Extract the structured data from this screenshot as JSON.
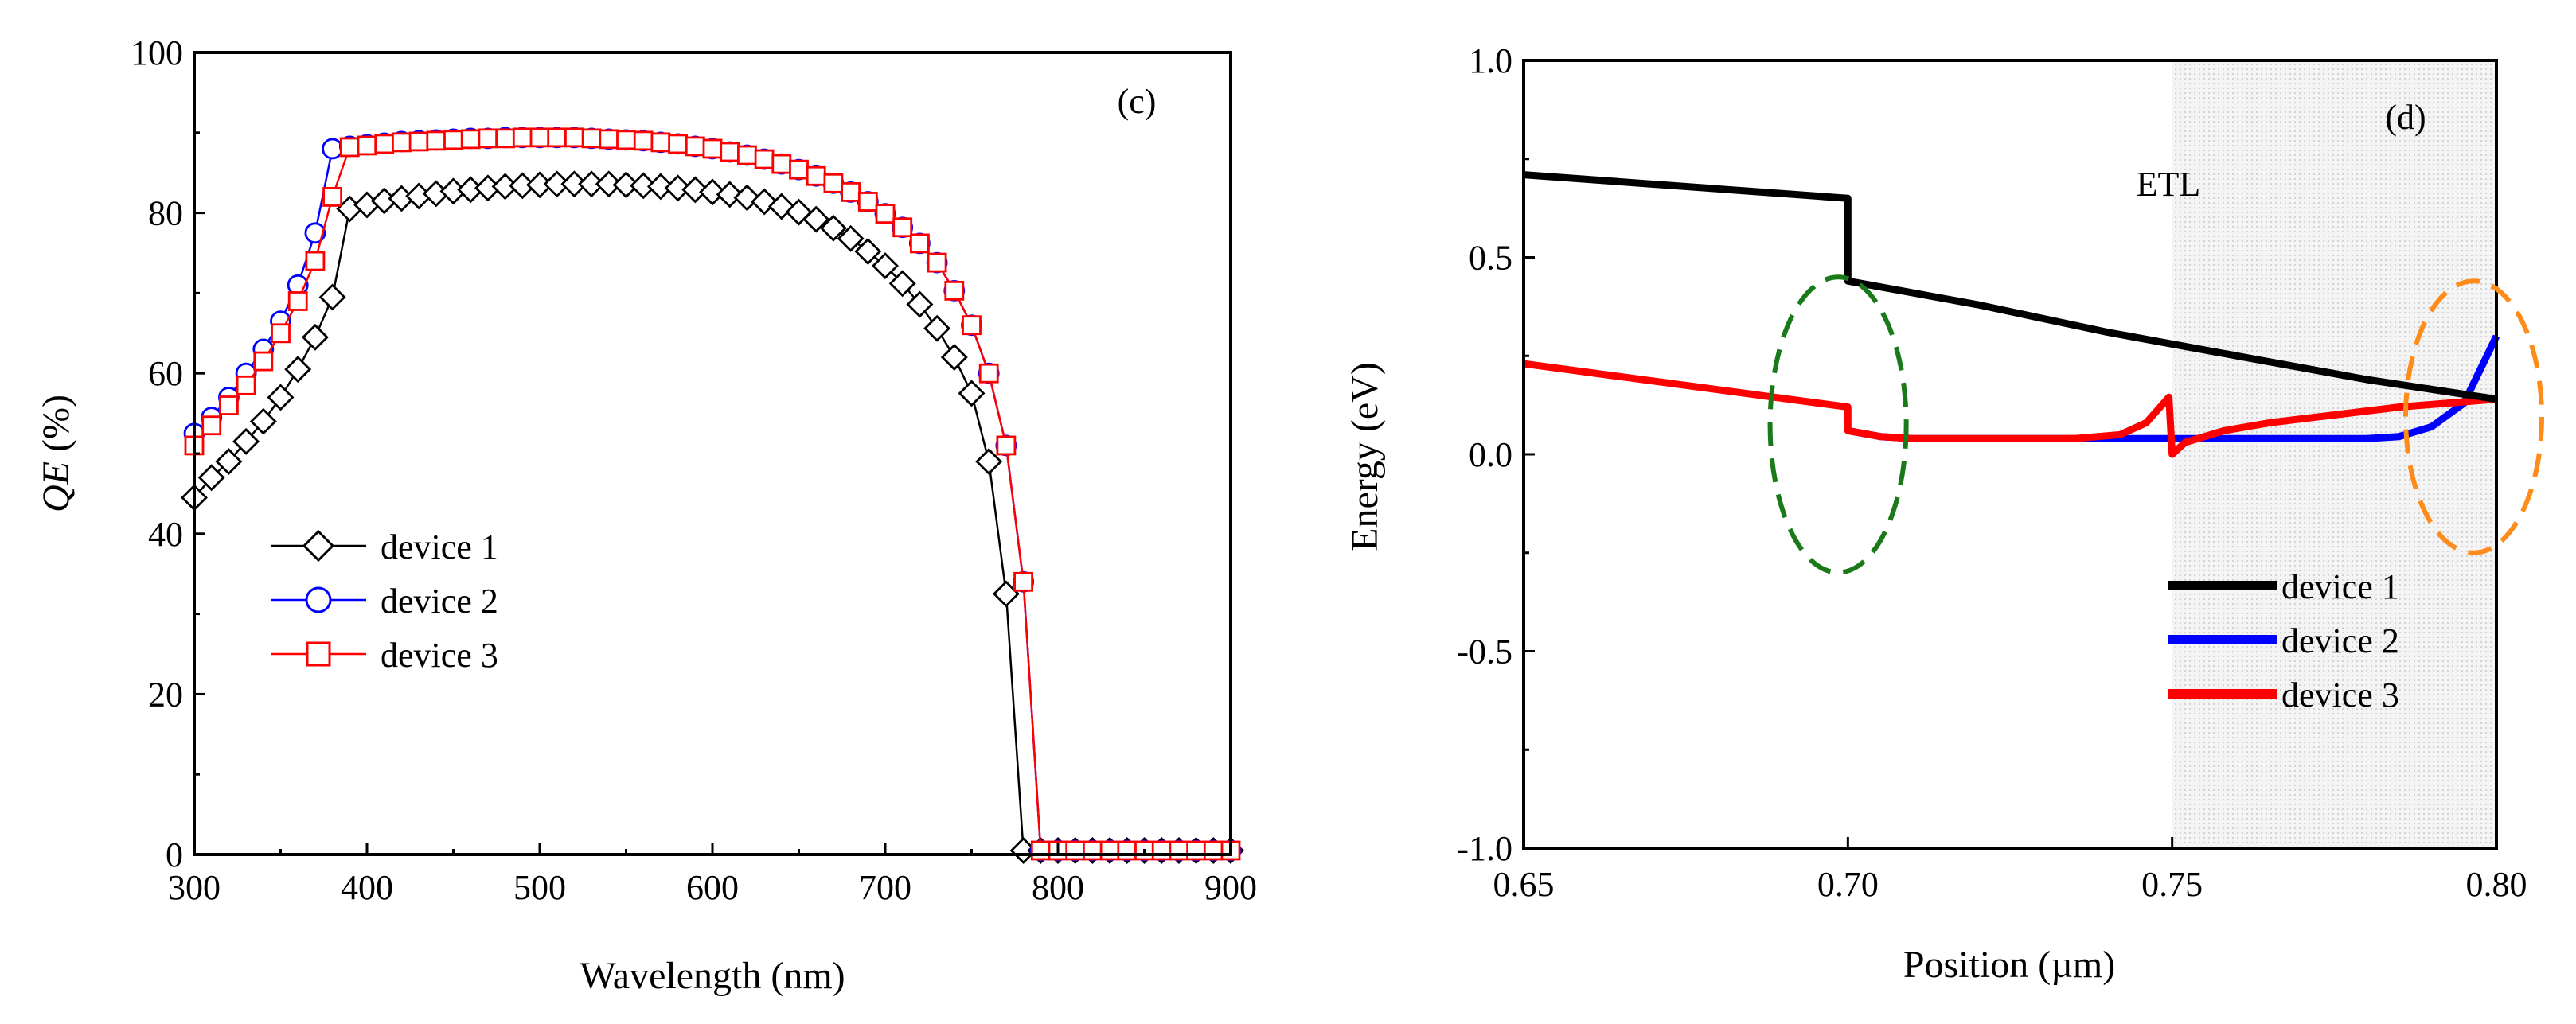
{
  "chart_data": [
    {
      "type": "line",
      "panel_label": "(c)",
      "xlabel": "Wavelength (nm)",
      "ylabel_main": "QE",
      "ylabel_suffix": " (%)",
      "xlim": [
        300,
        900
      ],
      "ylim": [
        0,
        100
      ],
      "xticks": [
        300,
        400,
        500,
        600,
        700,
        800,
        900
      ],
      "yticks": [
        0,
        20,
        40,
        60,
        80,
        100
      ],
      "legend_position": "left-center",
      "series": [
        {
          "name": "device 1",
          "color": "#000000",
          "marker": "diamond",
          "x": [
            300,
            310,
            320,
            330,
            340,
            350,
            360,
            370,
            380,
            390,
            400,
            410,
            420,
            430,
            440,
            450,
            460,
            470,
            480,
            490,
            500,
            510,
            520,
            530,
            540,
            550,
            560,
            570,
            580,
            590,
            600,
            610,
            620,
            630,
            640,
            650,
            660,
            670,
            680,
            690,
            700,
            710,
            720,
            730,
            740,
            750,
            760,
            770,
            780,
            790,
            800,
            810,
            820,
            830,
            840,
            850,
            860,
            870,
            880,
            890,
            900
          ],
          "y": [
            44.5,
            47,
            49,
            51.5,
            54,
            57,
            60.5,
            64.5,
            69.5,
            80.5,
            81,
            81.5,
            81.8,
            82.1,
            82.4,
            82.7,
            82.9,
            83.1,
            83.3,
            83.4,
            83.5,
            83.6,
            83.6,
            83.6,
            83.6,
            83.5,
            83.4,
            83.3,
            83.1,
            82.9,
            82.6,
            82.3,
            81.9,
            81.4,
            80.8,
            80.1,
            79.2,
            78.1,
            76.8,
            75.2,
            73.4,
            71.2,
            68.6,
            65.6,
            62,
            57.5,
            49,
            32.5,
            0.5,
            0.5,
            0.5,
            0.5,
            0.5,
            0.5,
            0.5,
            0.5,
            0.5,
            0.5,
            0.5,
            0.5,
            0.5
          ]
        },
        {
          "name": "device 2",
          "color": "#0000ff",
          "marker": "circle",
          "x": [
            300,
            310,
            320,
            330,
            340,
            350,
            360,
            370,
            380,
            390,
            400,
            410,
            420,
            430,
            440,
            450,
            460,
            470,
            480,
            490,
            500,
            510,
            520,
            530,
            540,
            550,
            560,
            570,
            580,
            590,
            600,
            610,
            620,
            630,
            640,
            650,
            660,
            670,
            680,
            690,
            700,
            710,
            720,
            730,
            740,
            750,
            760,
            770,
            780,
            790,
            800,
            810,
            820,
            830,
            840,
            850,
            860,
            870,
            880,
            890,
            900
          ],
          "y": [
            52.5,
            54.5,
            57,
            60,
            63,
            66.5,
            71,
            77.5,
            88,
            88.3,
            88.5,
            88.7,
            88.9,
            89,
            89.1,
            89.2,
            89.3,
            89.3,
            89.4,
            89.4,
            89.4,
            89.4,
            89.4,
            89.3,
            89.2,
            89.1,
            89,
            88.8,
            88.6,
            88.3,
            88,
            87.6,
            87.2,
            86.7,
            86.1,
            85.4,
            84.6,
            83.7,
            82.6,
            81.4,
            79.9,
            78.2,
            76.2,
            73.8,
            70.3,
            66,
            60,
            51,
            34,
            0.5,
            0.5,
            0.5,
            0.5,
            0.5,
            0.5,
            0.5,
            0.5,
            0.5,
            0.5,
            0.5,
            0.5
          ]
        },
        {
          "name": "device 3",
          "color": "#ff0000",
          "marker": "square",
          "x": [
            300,
            310,
            320,
            330,
            340,
            350,
            360,
            370,
            380,
            390,
            400,
            410,
            420,
            430,
            440,
            450,
            460,
            470,
            480,
            490,
            500,
            510,
            520,
            530,
            540,
            550,
            560,
            570,
            580,
            590,
            600,
            610,
            620,
            630,
            640,
            650,
            660,
            670,
            680,
            690,
            700,
            710,
            720,
            730,
            740,
            750,
            760,
            770,
            780,
            790,
            800,
            810,
            820,
            830,
            840,
            850,
            860,
            870,
            880,
            890,
            900
          ],
          "y": [
            51,
            53.5,
            56,
            58.5,
            61.5,
            65,
            69,
            74,
            82,
            88.2,
            88.4,
            88.6,
            88.8,
            88.9,
            89,
            89.1,
            89.2,
            89.3,
            89.3,
            89.4,
            89.4,
            89.4,
            89.4,
            89.3,
            89.2,
            89.1,
            89,
            88.8,
            88.6,
            88.3,
            88,
            87.6,
            87.2,
            86.7,
            86.1,
            85.4,
            84.6,
            83.7,
            82.6,
            81.4,
            79.9,
            78.2,
            76.2,
            73.8,
            70.3,
            66,
            60,
            51,
            34,
            0.5,
            0.5,
            0.5,
            0.5,
            0.5,
            0.5,
            0.5,
            0.5,
            0.5,
            0.5,
            0.5,
            0.5
          ]
        }
      ]
    },
    {
      "type": "line",
      "panel_label": "(d)",
      "xlabel": "Position (µm)",
      "ylabel": "Energy (eV)",
      "region_label": "ETL",
      "region_x": [
        0.75,
        0.8
      ],
      "xlim": [
        0.65,
        0.8
      ],
      "ylim": [
        -1.0,
        1.0
      ],
      "xticks": [
        "0.65",
        "0.70",
        "0.75",
        "0.80"
      ],
      "yticks": [
        "-1.0",
        "-0.5",
        "0.0",
        "0.5",
        "1.0"
      ],
      "legend_position": "lower-right",
      "annotations": [
        {
          "shape": "dashed-ellipse",
          "color": "#1a7a1a",
          "center": [
            0.6985,
            0.075
          ],
          "radius_x": 0.0105,
          "radius_y": 0.375
        },
        {
          "shape": "dashed-ellipse",
          "color": "#ff8c1a",
          "center": [
            0.7965,
            0.095
          ],
          "radius_x": 0.0105,
          "radius_y": 0.345
        }
      ],
      "series": [
        {
          "name": "device 1",
          "color": "#000000",
          "x": [
            0.65,
            0.7,
            0.7,
            0.72,
            0.74,
            0.76,
            0.78,
            0.8
          ],
          "y": [
            0.71,
            0.65,
            0.44,
            0.38,
            0.31,
            0.25,
            0.19,
            0.14
          ]
        },
        {
          "name": "device 2",
          "color": "#0000ff",
          "x": [
            0.7,
            0.705,
            0.71,
            0.73,
            0.75,
            0.77,
            0.78,
            0.785,
            0.79,
            0.795,
            0.8
          ],
          "y": [
            0.06,
            0.045,
            0.04,
            0.04,
            0.04,
            0.04,
            0.04,
            0.045,
            0.07,
            0.13,
            0.3
          ]
        },
        {
          "name": "device 3",
          "color": "#ff0000",
          "x": [
            0.65,
            0.7,
            0.7,
            0.705,
            0.71,
            0.735,
            0.742,
            0.746,
            0.7495,
            0.75,
            0.752,
            0.758,
            0.765,
            0.775,
            0.785,
            0.8
          ],
          "y": [
            0.23,
            0.12,
            0.06,
            0.045,
            0.04,
            0.04,
            0.05,
            0.08,
            0.145,
            0.0,
            0.03,
            0.06,
            0.08,
            0.1,
            0.12,
            0.14
          ]
        }
      ]
    }
  ]
}
